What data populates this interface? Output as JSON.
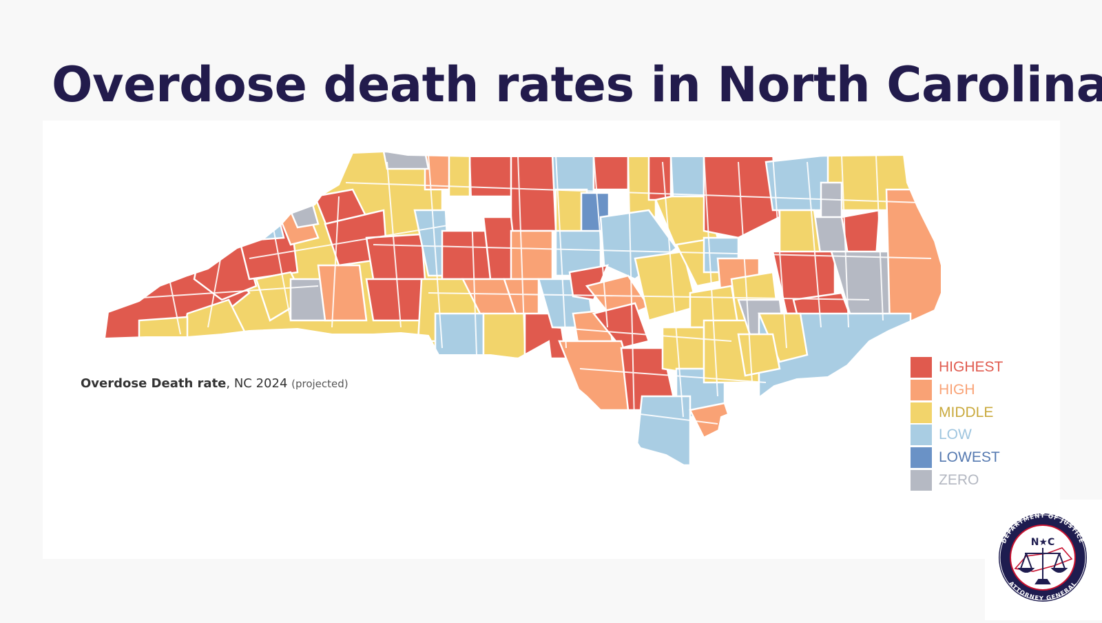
{
  "title": "Overdose death rates in North Carolina",
  "caption": {
    "metric": "Overdose Death rate",
    "detail": ", NC 2024 ",
    "note": "(projected)"
  },
  "legend": [
    {
      "label": "HIGHEST",
      "color": "#e05a4e",
      "text_color": "#e05a4e"
    },
    {
      "label": "HIGH",
      "color": "#f9a275",
      "text_color": "#f9a275"
    },
    {
      "label": "MIDDLE",
      "color": "#f2d46b",
      "text_color": "#c9a93c"
    },
    {
      "label": "LOW",
      "color": "#a9cde3",
      "text_color": "#9ec5df"
    },
    {
      "label": "LOWEST",
      "color": "#6a92c6",
      "text_color": "#5579b0"
    },
    {
      "label": "ZERO",
      "color": "#b5b9c3",
      "text_color": "#b3b7c1"
    }
  ],
  "seal": {
    "top_text": "DEPARTMENT OF JUSTICE",
    "bottom_text": "ATTORNEY GENERAL",
    "center_text": "N★C",
    "ring_color": "#1e1c4f",
    "accent_color": "#c8102e"
  }
}
